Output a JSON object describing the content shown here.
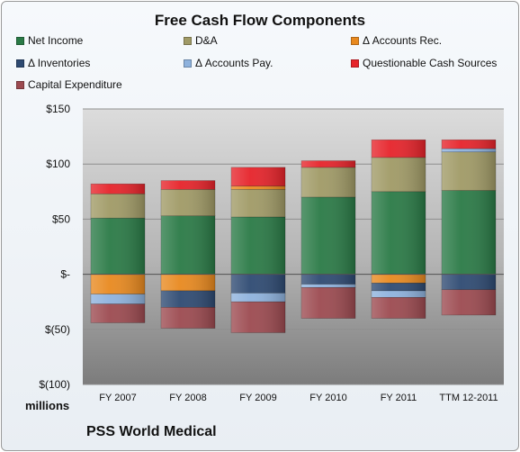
{
  "chart_data": {
    "type": "bar",
    "stacked": true,
    "title": "Free Cash Flow Components",
    "unit_label": "millions",
    "footer": "PSS World Medical",
    "categories": [
      "FY 2007",
      "FY 2008",
      "FY 2009",
      "FY 2010",
      "FY 2011",
      "TTM 12-2011"
    ],
    "ylim": [
      -100,
      150
    ],
    "y_ticks": [
      -100,
      -50,
      0,
      50,
      100,
      150
    ],
    "y_tick_labels": [
      "$(100)",
      "$(50)",
      "$-",
      "$50",
      "$100",
      "$150"
    ],
    "grid": true,
    "legend_position": "top",
    "series": [
      {
        "name": "Net Income",
        "color": "#2a7a46",
        "values": [
          51,
          53,
          52,
          70,
          75,
          76
        ]
      },
      {
        "name": "D&A",
        "color": "#a09a66",
        "values": [
          22,
          24,
          25,
          27,
          31,
          35
        ]
      },
      {
        "name": "Δ Accounts Rec.",
        "color": "#e8891f",
        "values": [
          -18,
          -15,
          3,
          0,
          -8,
          0
        ]
      },
      {
        "name": "Δ Inventories",
        "color": "#2e4a72",
        "values": [
          0,
          -15,
          -17,
          -9,
          -7,
          -14
        ]
      },
      {
        "name": "Δ Accounts Pay.",
        "color": "#8eb2dd",
        "values": [
          -9,
          0,
          -8,
          -3,
          -6,
          3
        ]
      },
      {
        "name": "Questionable Cash Sources",
        "color": "#e6232a",
        "values": [
          9,
          8,
          17,
          6,
          16,
          8
        ]
      },
      {
        "name": "Capital Expenditure",
        "color": "#9c4a50",
        "values": [
          -17,
          -19,
          -28,
          -28,
          -19,
          -23
        ]
      }
    ]
  }
}
